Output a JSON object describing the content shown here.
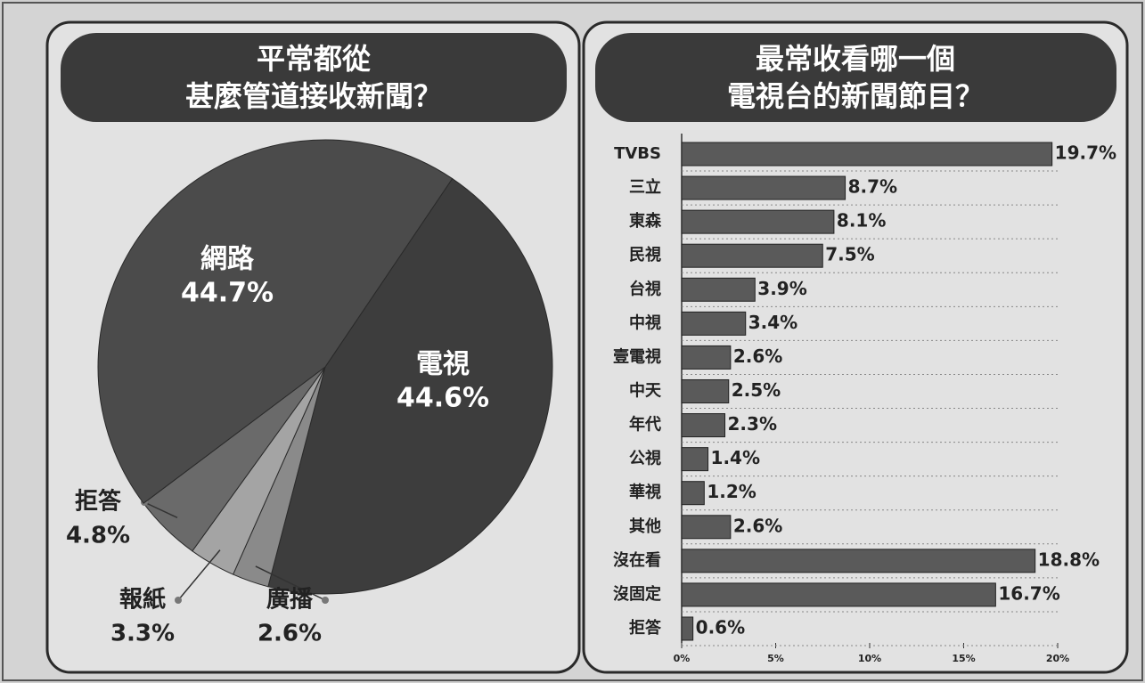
{
  "chart_data": [
    {
      "type": "pie",
      "title": [
        "平常都從",
        "甚麼管道接收新聞？"
      ],
      "categories": [
        "電視",
        "廣播",
        "報紙",
        "拒答",
        "網路"
      ],
      "values": [
        44.6,
        2.6,
        3.3,
        4.8,
        44.7
      ],
      "value_labels": [
        "44.6%",
        "2.6%",
        "3.3%",
        "4.8%",
        "44.7%"
      ],
      "colors": [
        "#3d3d3d",
        "#8a8a8a",
        "#a4a4a4",
        "#6a6a6a",
        "#4b4b4b"
      ]
    },
    {
      "type": "bar",
      "title": [
        "最常收看哪一個",
        "電視台的新聞節目？"
      ],
      "categories": [
        "TVBS",
        "三立",
        "東森",
        "民視",
        "台視",
        "中視",
        "壹電視",
        "中天",
        "年代",
        "公視",
        "華視",
        "其他",
        "沒在看",
        "沒固定",
        "拒答"
      ],
      "values": [
        19.7,
        8.7,
        8.1,
        7.5,
        3.9,
        3.4,
        2.6,
        2.5,
        2.3,
        1.4,
        1.2,
        2.6,
        18.8,
        16.7,
        0.6
      ],
      "value_labels": [
        "19.7%",
        "8.7%",
        "8.1%",
        "7.5%",
        "3.9%",
        "3.4%",
        "2.6%",
        "2.5%",
        "2.3%",
        "1.4%",
        "1.2%",
        "2.6%",
        "18.8%",
        "16.7%",
        "0.6%"
      ],
      "color": "#5a5a5a",
      "xlim": [
        0,
        20
      ],
      "xticks": [
        {
          "value": 0,
          "label": "0%"
        },
        {
          "value": 5,
          "label": "5%"
        },
        {
          "value": 10,
          "label": "10%"
        },
        {
          "value": 15,
          "label": "15%"
        },
        {
          "value": 20,
          "label": "20%"
        }
      ]
    }
  ]
}
